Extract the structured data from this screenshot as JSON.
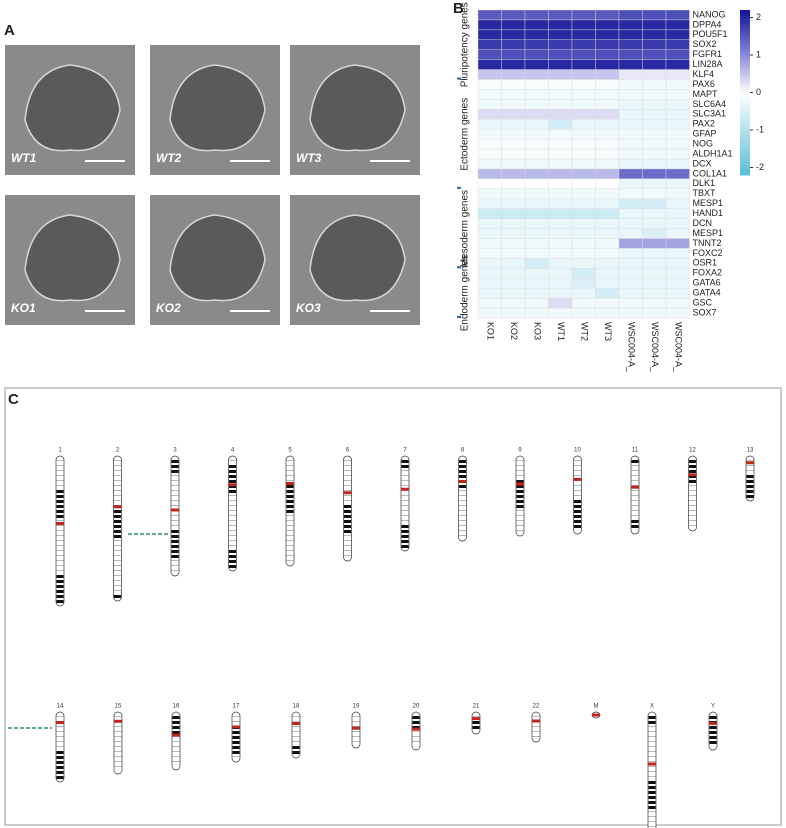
{
  "panels": {
    "a": {
      "letter": "A",
      "images": [
        "WT1",
        "WT2",
        "WT3",
        "KO1",
        "KO2",
        "KO3"
      ]
    },
    "c": {
      "letter": "C",
      "chromosomes": [
        "1",
        "2",
        "3",
        "4",
        "5",
        "6",
        "7",
        "8",
        "9",
        "10",
        "11",
        "12",
        "13",
        "14",
        "15",
        "16",
        "17",
        "18",
        "19",
        "20",
        "21",
        "22",
        "M",
        "X",
        "Y"
      ]
    }
  },
  "chart_data": {
    "type": "heatmap",
    "letter": "B",
    "columns": [
      "KO1",
      "KO2",
      "KO3",
      "WT1",
      "WT2",
      "WT3",
      "WSC004-A_",
      "WSC004-A_",
      "WSC004-A_"
    ],
    "rows": [
      "NANOG",
      "DPPA4",
      "POU5F1",
      "SOX2",
      "FGFR1",
      "LIN28A",
      "KLF4",
      "PAX6",
      "MAPT",
      "SLC6A4",
      "SLC3A1",
      "PAX2",
      "GFAP",
      "NOG",
      "ALDH1A1",
      "DCX",
      "COL1A1",
      "DLK1",
      "TBXT",
      "MESP1",
      "HAND1",
      "DCN",
      "MESP1",
      "TNNT2",
      "FOXC2",
      "OSR1",
      "FOXA2",
      "GATA6",
      "GATA4",
      "GSC",
      "SOX7"
    ],
    "groups": [
      {
        "label": "Pluripotency genes",
        "start": 0,
        "end": 6
      },
      {
        "label": "Ectoderm genes",
        "start": 7,
        "end": 17
      },
      {
        "label": "Mesoderm genes",
        "start": 18,
        "end": 25
      },
      {
        "label": "Endoderm genes",
        "start": 26,
        "end": 30
      }
    ],
    "values": [
      [
        1.5,
        1.5,
        1.5,
        1.5,
        1.5,
        1.5,
        1.6,
        1.6,
        1.6
      ],
      [
        2,
        2,
        2,
        2,
        2,
        2,
        2,
        2,
        2
      ],
      [
        2,
        2,
        2,
        2,
        2,
        2,
        2,
        2,
        2
      ],
      [
        1.8,
        1.8,
        1.8,
        1.8,
        1.8,
        1.8,
        1.8,
        1.8,
        1.8
      ],
      [
        1.6,
        1.6,
        1.6,
        1.6,
        1.6,
        1.6,
        1.6,
        1.6,
        1.6
      ],
      [
        2,
        2,
        2,
        2,
        2,
        2,
        2,
        2,
        2
      ],
      [
        0.5,
        0.5,
        0.5,
        0.5,
        0.5,
        0.5,
        0.2,
        0.2,
        0.2
      ],
      [
        -0.1,
        -0.1,
        -0.1,
        -0.1,
        -0.1,
        -0.1,
        -0.2,
        -0.2,
        -0.2
      ],
      [
        -0.2,
        -0.2,
        -0.2,
        -0.2,
        -0.2,
        -0.2,
        -0.2,
        -0.2,
        -0.2
      ],
      [
        -0.2,
        -0.2,
        -0.2,
        -0.2,
        -0.2,
        -0.2,
        -0.3,
        -0.3,
        -0.3
      ],
      [
        0.3,
        0.3,
        0.3,
        0.3,
        0.3,
        0.3,
        -0.3,
        -0.3,
        -0.3
      ],
      [
        -0.3,
        -0.3,
        -0.3,
        -0.6,
        -0.3,
        -0.3,
        -0.3,
        -0.3,
        -0.3
      ],
      [
        -0.2,
        -0.2,
        -0.2,
        -0.2,
        -0.2,
        -0.2,
        -0.2,
        -0.2,
        -0.2
      ],
      [
        -0.1,
        -0.1,
        -0.1,
        -0.1,
        -0.1,
        -0.1,
        -0.2,
        -0.2,
        -0.2
      ],
      [
        -0.1,
        -0.1,
        -0.1,
        -0.1,
        -0.1,
        -0.1,
        -0.2,
        -0.2,
        -0.2
      ],
      [
        -0.2,
        -0.2,
        -0.2,
        -0.2,
        -0.2,
        -0.2,
        -0.3,
        -0.3,
        -0.3
      ],
      [
        0.6,
        0.6,
        0.6,
        0.6,
        0.6,
        0.6,
        1.3,
        1.3,
        1.3
      ],
      [
        0,
        0,
        0,
        0,
        0,
        0,
        -0.3,
        -0.3,
        -0.3
      ],
      [
        -0.2,
        -0.2,
        -0.2,
        -0.2,
        -0.2,
        -0.2,
        -0.2,
        -0.2,
        -0.2
      ],
      [
        -0.3,
        -0.3,
        -0.3,
        -0.3,
        -0.3,
        -0.3,
        -0.6,
        -0.6,
        -0.3
      ],
      [
        -0.7,
        -0.7,
        -0.7,
        -0.7,
        -0.7,
        -0.7,
        -0.3,
        -0.3,
        -0.3
      ],
      [
        -0.3,
        -0.3,
        -0.3,
        -0.3,
        -0.3,
        -0.3,
        -0.3,
        -0.3,
        -0.3
      ],
      [
        -0.3,
        -0.3,
        -0.3,
        -0.3,
        -0.3,
        -0.3,
        -0.3,
        -0.5,
        -0.3
      ],
      [
        -0.2,
        -0.2,
        -0.2,
        -0.2,
        -0.2,
        -0.2,
        0.8,
        0.8,
        0.8
      ],
      [
        -0.2,
        -0.2,
        -0.2,
        -0.2,
        -0.2,
        -0.2,
        -0.3,
        -0.3,
        -0.3
      ],
      [
        -0.3,
        -0.3,
        -0.6,
        -0.3,
        -0.3,
        -0.3,
        -0.3,
        -0.3,
        -0.3
      ],
      [
        -0.3,
        -0.3,
        -0.3,
        -0.3,
        -0.6,
        -0.3,
        -0.3,
        -0.3,
        -0.3
      ],
      [
        -0.3,
        -0.3,
        -0.3,
        -0.3,
        -0.5,
        -0.3,
        -0.3,
        -0.3,
        -0.3
      ],
      [
        -0.3,
        -0.3,
        -0.3,
        -0.3,
        -0.3,
        -0.6,
        -0.3,
        -0.3,
        -0.3
      ],
      [
        -0.2,
        -0.2,
        -0.2,
        0.3,
        -0.2,
        -0.2,
        -0.2,
        -0.2,
        -0.2
      ],
      [
        -0.2,
        -0.2,
        -0.2,
        -0.2,
        -0.2,
        -0.2,
        -0.2,
        -0.2,
        -0.2
      ]
    ],
    "clim": [
      -2.2,
      2.2
    ],
    "colorbar_ticks": [
      2,
      1,
      0,
      -1,
      -2
    ]
  }
}
